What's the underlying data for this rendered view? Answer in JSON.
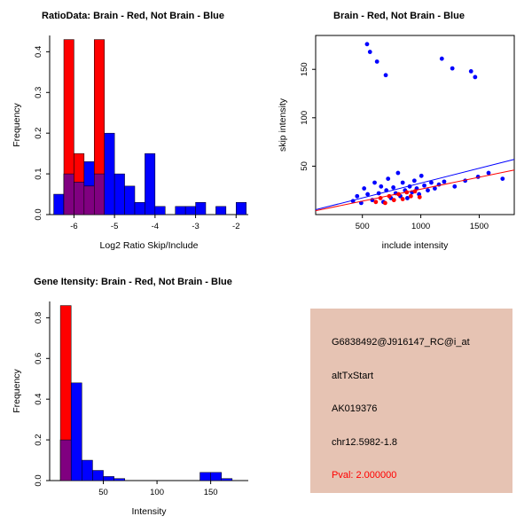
{
  "window": {
    "background": "#FFFFFF"
  },
  "chart_data": [
    {
      "id": "ratio-hist",
      "type": "bar",
      "title": "RatioData: Brain - Red, Not Brain - Blue",
      "xlabel": "Log2 Ratio Skip/Include",
      "ylabel": "Frequency",
      "xlim": [
        -6.6,
        -1.7
      ],
      "ylim": [
        0,
        0.44
      ],
      "grid": false,
      "xticks": [
        {
          "v": -6,
          "l": "-6"
        },
        {
          "v": -5,
          "l": "-5"
        },
        {
          "v": -4,
          "l": "-4"
        },
        {
          "v": -3,
          "l": "-3"
        },
        {
          "v": -2,
          "l": "-2"
        }
      ],
      "yticks": [
        {
          "v": 0,
          "l": "0.0"
        },
        {
          "v": 0.1,
          "l": "0.1"
        },
        {
          "v": 0.2,
          "l": "0.2"
        },
        {
          "v": 0.3,
          "l": "0.3"
        },
        {
          "v": 0.4,
          "l": "0.4"
        }
      ],
      "bin_start": -6.5,
      "bin_width": 0.25,
      "overlap_color": "#800080",
      "series": [
        {
          "name": "Not Brain",
          "color": "#0000FF",
          "values": [
            0.05,
            0.1,
            0.08,
            0.13,
            0.1,
            0.2,
            0.1,
            0.07,
            0.03,
            0.15,
            0.02,
            0,
            0.02,
            0.02,
            0.03,
            0,
            0.02,
            0,
            0.03
          ]
        },
        {
          "name": "Brain",
          "color": "#FF0000",
          "values": [
            0,
            0.43,
            0.15,
            0.07,
            0.43,
            0,
            0,
            0,
            0,
            0,
            0,
            0,
            0,
            0,
            0,
            0,
            0,
            0,
            0
          ]
        }
      ]
    },
    {
      "id": "intensity-scatter",
      "type": "scatter",
      "title": "Brain - Red, Not Brain - Blue",
      "xlabel": "include intensity",
      "ylabel": "skip intensity",
      "xlim": [
        100,
        1800
      ],
      "ylim": [
        0,
        185
      ],
      "frame": true,
      "grid": false,
      "xticks": [
        {
          "v": 500,
          "l": "500"
        },
        {
          "v": 1000,
          "l": "1000"
        },
        {
          "v": 1500,
          "l": "1500"
        }
      ],
      "yticks": [
        {
          "v": 50,
          "l": "50"
        },
        {
          "v": 100,
          "l": "100"
        },
        {
          "v": 150,
          "l": "150"
        }
      ],
      "series": [
        {
          "name": "Not Brain",
          "color": "#0000FF",
          "points": [
            [
              420,
              14
            ],
            [
              455,
              19
            ],
            [
              490,
              12
            ],
            [
              515,
              27
            ],
            [
              540,
              176
            ],
            [
              545,
              21
            ],
            [
              565,
              168
            ],
            [
              585,
              15
            ],
            [
              605,
              33
            ],
            [
              625,
              158
            ],
            [
              640,
              22
            ],
            [
              660,
              29
            ],
            [
              680,
              13
            ],
            [
              700,
              144
            ],
            [
              705,
              25
            ],
            [
              720,
              37
            ],
            [
              745,
              17
            ],
            [
              765,
              28
            ],
            [
              785,
              22
            ],
            [
              805,
              43
            ],
            [
              825,
              19
            ],
            [
              845,
              33
            ],
            [
              865,
              25
            ],
            [
              885,
              17
            ],
            [
              905,
              29
            ],
            [
              925,
              23
            ],
            [
              945,
              35
            ],
            [
              965,
              27
            ],
            [
              985,
              21
            ],
            [
              1005,
              40
            ],
            [
              1030,
              30
            ],
            [
              1060,
              25
            ],
            [
              1090,
              33
            ],
            [
              1120,
              27
            ],
            [
              1155,
              31
            ],
            [
              1180,
              161
            ],
            [
              1200,
              34
            ],
            [
              1270,
              151
            ],
            [
              1290,
              29
            ],
            [
              1380,
              35
            ],
            [
              1430,
              148
            ],
            [
              1465,
              142
            ],
            [
              1490,
              39
            ],
            [
              1580,
              43
            ],
            [
              1700,
              37
            ]
          ]
        },
        {
          "name": "Brain",
          "color": "#FF0000",
          "points": [
            [
              615,
              13
            ],
            [
              655,
              17
            ],
            [
              695,
              12
            ],
            [
              730,
              19
            ],
            [
              770,
              15
            ],
            [
              810,
              21
            ],
            [
              845,
              16
            ],
            [
              880,
              23
            ],
            [
              915,
              19
            ],
            [
              950,
              24
            ],
            [
              990,
              18
            ]
          ]
        }
      ],
      "lines": [
        {
          "color": "#0000FF",
          "x1": 100,
          "y1": 5,
          "x2": 1800,
          "y2": 57
        },
        {
          "color": "#FF0000",
          "x1": 100,
          "y1": 4,
          "x2": 1800,
          "y2": 46
        }
      ]
    },
    {
      "id": "gene-hist",
      "type": "bar",
      "title": "Gene Itensity: Brain - Red, Not Brain - Blue",
      "xlabel": "Intensity",
      "ylabel": "Frequency",
      "xlim": [
        0,
        185
      ],
      "ylim": [
        0,
        0.88
      ],
      "grid": false,
      "xticks": [
        {
          "v": 50,
          "l": "50"
        },
        {
          "v": 100,
          "l": "100"
        },
        {
          "v": 150,
          "l": "150"
        }
      ],
      "yticks": [
        {
          "v": 0,
          "l": "0.0"
        },
        {
          "v": 0.2,
          "l": "0.2"
        },
        {
          "v": 0.4,
          "l": "0.4"
        },
        {
          "v": 0.6,
          "l": "0.6"
        },
        {
          "v": 0.8,
          "l": "0.8"
        }
      ],
      "bin_start": 0,
      "bin_width": 10,
      "overlap_color": "#800080",
      "series": [
        {
          "name": "Not Brain",
          "color": "#0000FF",
          "values": [
            0,
            0.2,
            0.48,
            0.1,
            0.05,
            0.02,
            0.01,
            0,
            0,
            0,
            0,
            0,
            0,
            0,
            0.04,
            0.04,
            0.01,
            0
          ]
        },
        {
          "name": "Brain",
          "color": "#FF0000",
          "values": [
            0,
            0.86,
            0,
            0,
            0,
            0,
            0,
            0,
            0,
            0,
            0,
            0,
            0,
            0,
            0,
            0,
            0,
            0
          ]
        }
      ]
    }
  ],
  "info_panel": {
    "bg_color": "#E6C3B3",
    "lines": [
      {
        "text": "G6838492@J916147_RC@i_at",
        "color": "#000000"
      },
      {
        "text": "altTxStart",
        "color": "#000000"
      },
      {
        "text": "AK019376",
        "color": "#000000"
      },
      {
        "text": "chr12.5982-1.8",
        "color": "#000000"
      },
      {
        "text": "Pval: 2.000000",
        "color": "#FF0000"
      }
    ]
  }
}
